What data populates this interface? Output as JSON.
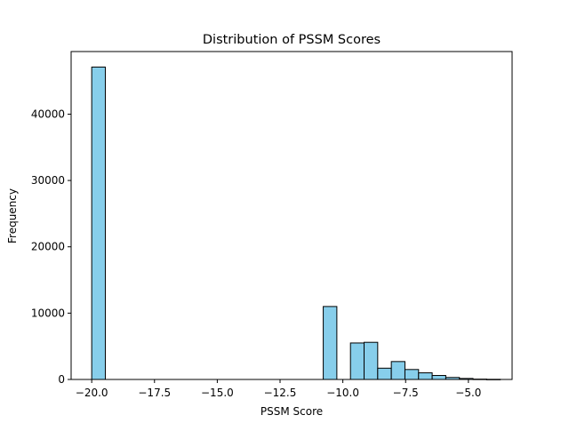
{
  "chart_data": {
    "type": "bar",
    "title": "Distribution of PSSM Scores",
    "xlabel": "PSSM Score",
    "ylabel": "Frequency",
    "xlim": [
      -20.82,
      -3.26
    ],
    "ylim": [
      0,
      49440
    ],
    "bins": {
      "start": -20.0,
      "width": 0.5423,
      "counts": [
        47100,
        0,
        0,
        0,
        0,
        0,
        0,
        0,
        0,
        0,
        0,
        0,
        0,
        0,
        0,
        0,
        0,
        11000,
        0,
        5500,
        5600,
        1700,
        2700,
        1500,
        1000,
        600,
        300,
        150,
        50,
        20
      ]
    },
    "xticks": [
      {
        "value": -20.0,
        "label": "−20.0"
      },
      {
        "value": -17.5,
        "label": "−17.5"
      },
      {
        "value": -15.0,
        "label": "−15.0"
      },
      {
        "value": -12.5,
        "label": "−12.5"
      },
      {
        "value": -10.0,
        "label": "−10.0"
      },
      {
        "value": -7.5,
        "label": "−7.5"
      },
      {
        "value": -5.0,
        "label": "−5.0"
      }
    ],
    "yticks": [
      {
        "value": 0,
        "label": "0"
      },
      {
        "value": 10000,
        "label": "10000"
      },
      {
        "value": 20000,
        "label": "20000"
      },
      {
        "value": 30000,
        "label": "30000"
      },
      {
        "value": 40000,
        "label": "40000"
      }
    ],
    "bar_color": "#87ceeb",
    "edge_color": "#000000",
    "grid": false,
    "legend": "none"
  }
}
